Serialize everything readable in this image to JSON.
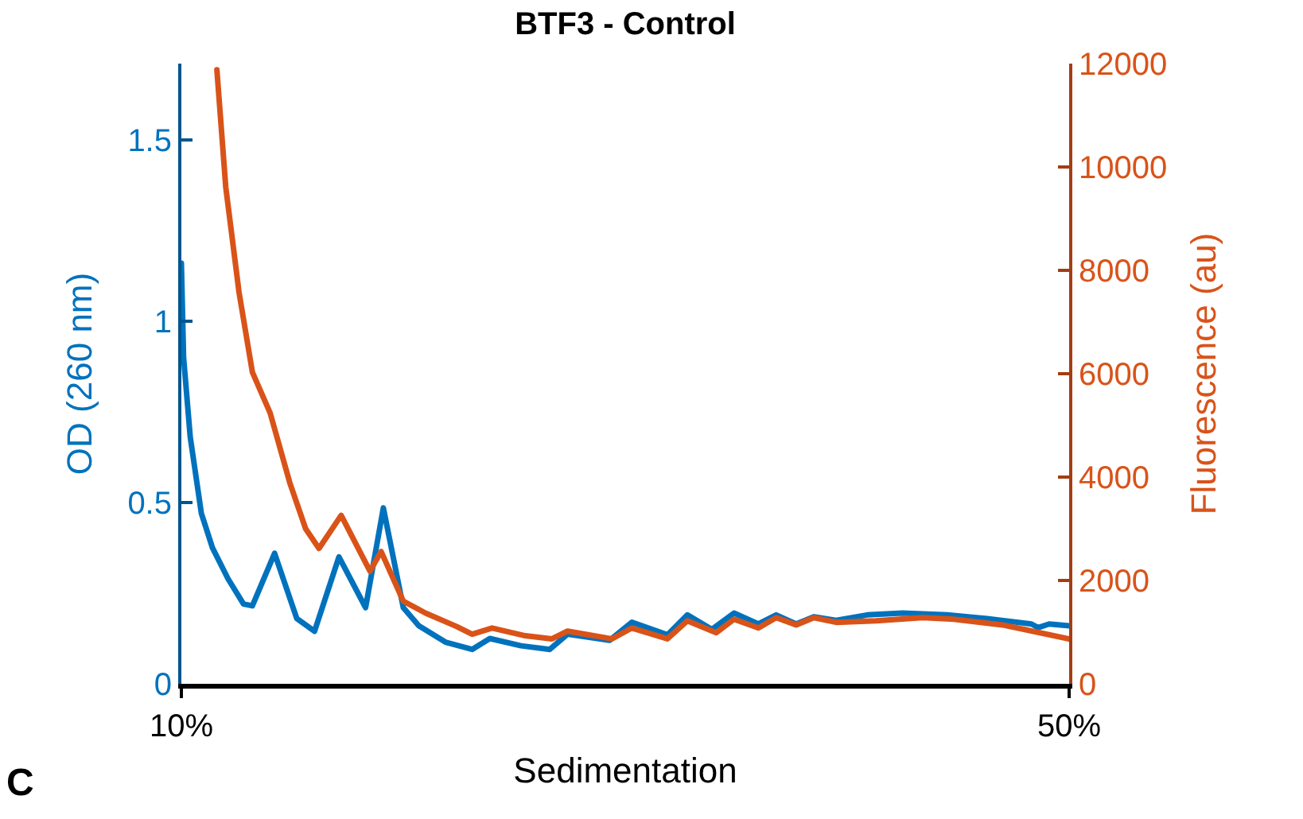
{
  "chart_data": {
    "type": "line",
    "title": "BTF3 - Control",
    "xlabel": "Sedimentation",
    "ylabel": "OD (260 nm)",
    "y2label": "Fluorescence (au)",
    "annotations": [
      "C"
    ],
    "xlim": [
      10,
      50
    ],
    "xticks": [
      {
        "value": 10,
        "label": "10%"
      },
      {
        "value": 50,
        "label": "50%"
      }
    ],
    "ylim": [
      0,
      1.71
    ],
    "yticks": [
      0,
      0.5,
      1,
      1.5
    ],
    "y2lim": [
      0,
      12000
    ],
    "y2ticks": [
      0,
      2000,
      4000,
      6000,
      8000,
      10000,
      12000
    ],
    "grid": false,
    "marker": "none",
    "line_style": "solid",
    "series": [
      {
        "color": "#0072bd",
        "x": [
          10.0,
          10.1,
          10.4,
          10.9,
          11.4,
          12.1,
          12.8,
          13.2,
          14.2,
          15.2,
          16.0,
          17.1,
          18.3,
          19.1,
          20.0,
          20.7,
          21.9,
          23.1,
          23.9,
          25.3,
          26.6,
          27.4,
          29.3,
          30.3,
          31.9,
          32.8,
          33.9,
          34.9,
          36.0,
          36.8,
          37.7,
          38.5,
          39.5,
          40.9,
          42.5,
          44.5,
          46.3,
          48.3,
          48.6,
          49.1,
          50.0
        ],
        "values": [
          1.16,
          0.9,
          0.68,
          0.47,
          0.375,
          0.29,
          0.22,
          0.215,
          0.36,
          0.18,
          0.145,
          0.35,
          0.21,
          0.485,
          0.21,
          0.16,
          0.115,
          0.095,
          0.125,
          0.105,
          0.095,
          0.137,
          0.12,
          0.17,
          0.135,
          0.19,
          0.15,
          0.195,
          0.165,
          0.19,
          0.165,
          0.185,
          0.175,
          0.19,
          0.195,
          0.19,
          0.18,
          0.165,
          0.155,
          0.165,
          0.16
        ]
      },
      {
        "color": "#d95319",
        "axis": "y2",
        "x": [
          11.6,
          12.0,
          12.6,
          13.2,
          14.0,
          14.9,
          15.6,
          16.2,
          17.2,
          18.5,
          19.0,
          20.0,
          21.0,
          22.4,
          23.1,
          24.0,
          25.5,
          26.7,
          27.4,
          29.4,
          30.3,
          31.9,
          32.8,
          34.1,
          34.9,
          36.0,
          36.8,
          37.7,
          38.5,
          39.5,
          41.3,
          43.4,
          44.8,
          47.0,
          50.0
        ],
        "values": [
          11880,
          9610,
          7570,
          6030,
          5240,
          3870,
          3000,
          2620,
          3260,
          2180,
          2560,
          1600,
          1370,
          1110,
          960,
          1080,
          930,
          870,
          1020,
          870,
          1080,
          870,
          1220,
          990,
          1250,
          1080,
          1280,
          1140,
          1280,
          1190,
          1220,
          1280,
          1250,
          1140,
          870
        ]
      }
    ]
  }
}
